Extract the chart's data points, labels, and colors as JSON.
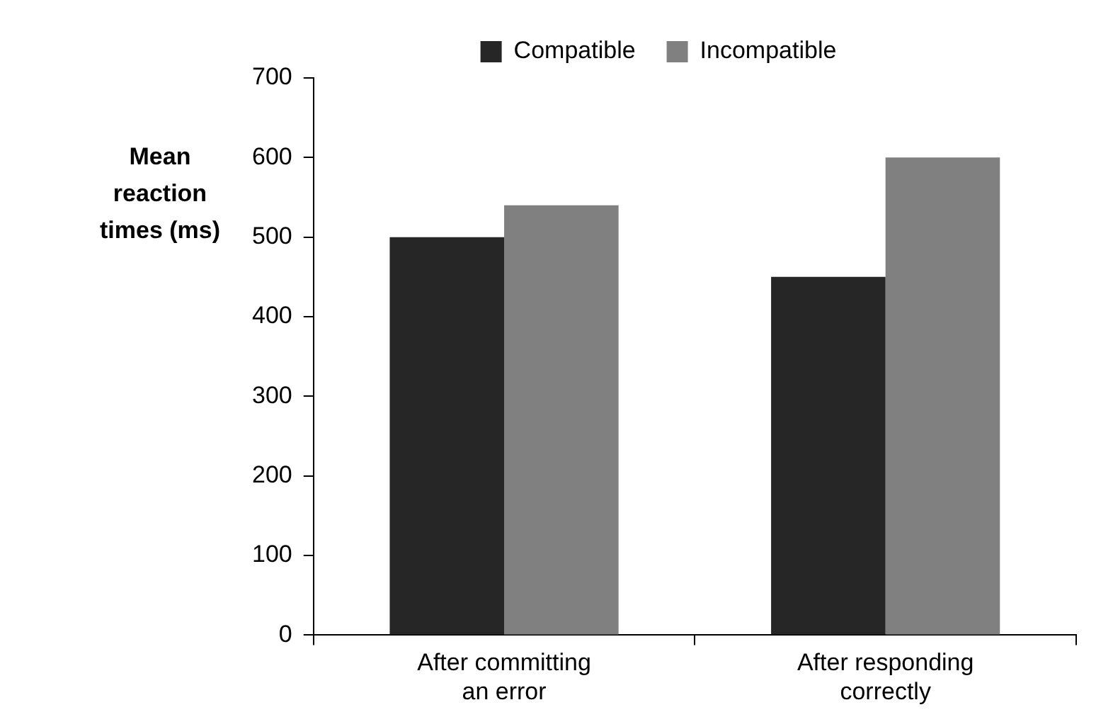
{
  "chart_data": {
    "type": "bar",
    "ylabel": "Mean reaction times (ms)",
    "categories": [
      "After committing an error",
      "After responding correctly"
    ],
    "series": [
      {
        "name": "Compatible",
        "color": "#262626",
        "values": [
          500,
          450
        ]
      },
      {
        "name": "Incompatible",
        "color": "#808080",
        "values": [
          540,
          600
        ]
      }
    ],
    "ylim": [
      0,
      700
    ],
    "yticks": [
      0,
      100,
      200,
      300,
      400,
      500,
      600,
      700
    ],
    "grid": false,
    "legend": "top"
  }
}
